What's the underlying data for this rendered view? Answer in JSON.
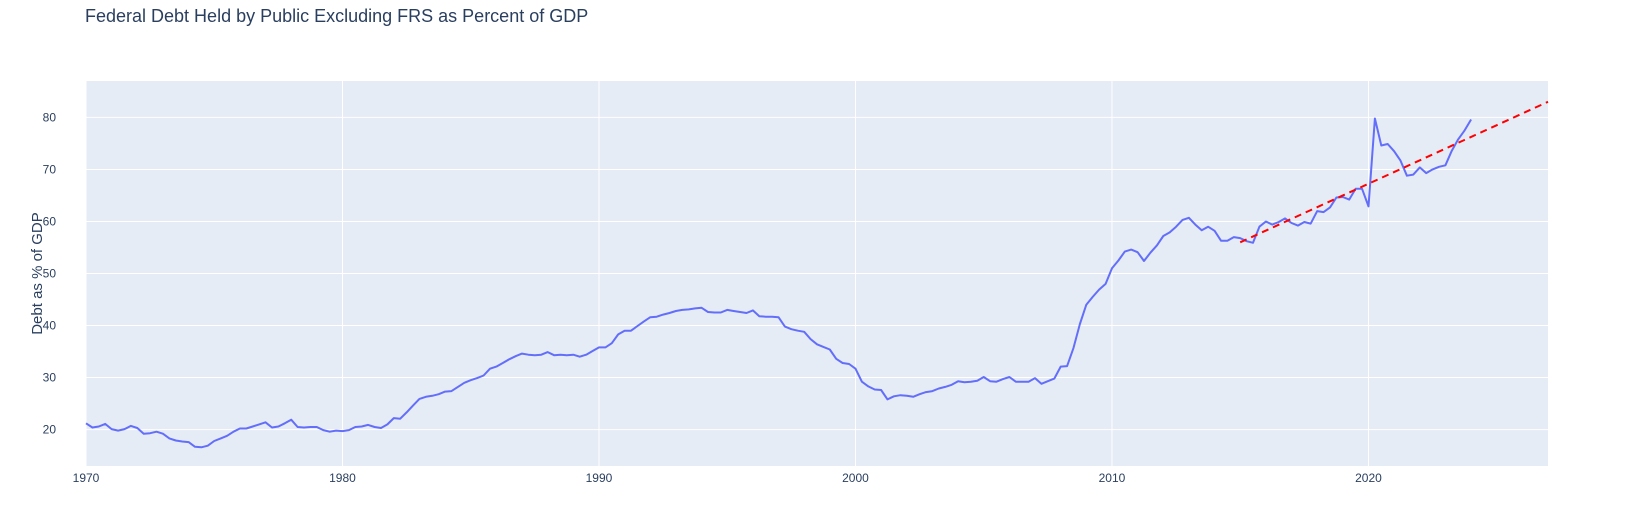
{
  "chart_data": {
    "type": "line",
    "title": "Federal Debt Held by Public Excluding FRS as Percent of GDP",
    "xlabel": "",
    "ylabel": "Debt as % of GDP",
    "xlim": [
      1970,
      2027
    ],
    "ylim": [
      13,
      87
    ],
    "x_ticks": [
      1970,
      1980,
      1990,
      2000,
      2010,
      2020
    ],
    "y_ticks": [
      20,
      30,
      40,
      50,
      60,
      70,
      80
    ],
    "grid": true,
    "legend": "none",
    "colors": {
      "series": "#636efa",
      "trend": "#ff0000",
      "plot_bg": "#e5ecf6",
      "grid": "#ffffff",
      "text": "#2a3f5f"
    },
    "series": [
      {
        "style": "solid",
        "x": [
          1970.0,
          1970.25,
          1970.5,
          1970.75,
          1971.0,
          1971.25,
          1971.5,
          1971.75,
          1972.0,
          1972.25,
          1972.5,
          1972.75,
          1973.0,
          1973.25,
          1973.5,
          1973.75,
          1974.0,
          1974.25,
          1974.5,
          1974.75,
          1975.0,
          1975.25,
          1975.5,
          1975.75,
          1976.0,
          1976.25,
          1976.5,
          1976.75,
          1977.0,
          1977.25,
          1977.5,
          1977.75,
          1978.0,
          1978.25,
          1978.5,
          1978.75,
          1979.0,
          1979.25,
          1979.5,
          1979.75,
          1980.0,
          1980.25,
          1980.5,
          1980.75,
          1981.0,
          1981.25,
          1981.5,
          1981.75,
          1982.0,
          1982.25,
          1982.5,
          1982.75,
          1983.0,
          1983.25,
          1983.5,
          1983.75,
          1984.0,
          1984.25,
          1984.5,
          1984.75,
          1985.0,
          1985.25,
          1985.5,
          1985.75,
          1986.0,
          1986.25,
          1986.5,
          1986.75,
          1987.0,
          1987.25,
          1987.5,
          1987.75,
          1988.0,
          1988.25,
          1988.5,
          1988.75,
          1989.0,
          1989.25,
          1989.5,
          1989.75,
          1990.0,
          1990.25,
          1990.5,
          1990.75,
          1991.0,
          1991.25,
          1991.5,
          1991.75,
          1992.0,
          1992.25,
          1992.5,
          1992.75,
          1993.0,
          1993.25,
          1993.5,
          1993.75,
          1994.0,
          1994.25,
          1994.5,
          1994.75,
          1995.0,
          1995.25,
          1995.5,
          1995.75,
          1996.0,
          1996.25,
          1996.5,
          1996.75,
          1997.0,
          1997.25,
          1997.5,
          1997.75,
          1998.0,
          1998.25,
          1998.5,
          1998.75,
          1999.0,
          1999.25,
          1999.5,
          1999.75,
          2000.0,
          2000.25,
          2000.5,
          2000.75,
          2001.0,
          2001.25,
          2001.5,
          2001.75,
          2002.0,
          2002.25,
          2002.5,
          2002.75,
          2003.0,
          2003.25,
          2003.5,
          2003.75,
          2004.0,
          2004.25,
          2004.5,
          2004.75,
          2005.0,
          2005.25,
          2005.5,
          2005.75,
          2006.0,
          2006.25,
          2006.5,
          2006.75,
          2007.0,
          2007.25,
          2007.5,
          2007.75,
          2008.0,
          2008.25,
          2008.5,
          2008.75,
          2009.0,
          2009.25,
          2009.5,
          2009.75,
          2010.0,
          2010.25,
          2010.5,
          2010.75,
          2011.0,
          2011.25,
          2011.5,
          2011.75,
          2012.0,
          2012.25,
          2012.5,
          2012.75,
          2013.0,
          2013.25,
          2013.5,
          2013.75,
          2014.0,
          2014.25,
          2014.5,
          2014.75,
          2015.0,
          2015.25,
          2015.5,
          2015.75,
          2016.0,
          2016.25,
          2016.5,
          2016.75,
          2017.0,
          2017.25,
          2017.5,
          2017.75,
          2018.0,
          2018.25,
          2018.5,
          2018.75,
          2019.0,
          2019.25,
          2019.5,
          2019.75,
          2020.0,
          2020.25,
          2020.5,
          2020.75,
          2021.0,
          2021.25,
          2021.5,
          2021.75,
          2022.0,
          2022.25,
          2022.5,
          2022.75,
          2023.0,
          2023.25,
          2023.5,
          2023.75,
          2024.0
        ],
        "y": [
          21.2,
          20.4,
          20.6,
          21.1,
          20.1,
          19.8,
          20.1,
          20.7,
          20.3,
          19.2,
          19.3,
          19.6,
          19.2,
          18.3,
          17.9,
          17.7,
          17.6,
          16.7,
          16.6,
          16.9,
          17.8,
          18.3,
          18.8,
          19.6,
          20.2,
          20.2,
          20.6,
          21.0,
          21.4,
          20.4,
          20.6,
          21.2,
          21.9,
          20.5,
          20.4,
          20.5,
          20.5,
          19.9,
          19.6,
          19.8,
          19.7,
          19.9,
          20.5,
          20.6,
          20.9,
          20.5,
          20.3,
          21.0,
          22.2,
          22.1,
          23.3,
          24.6,
          25.9,
          26.3,
          26.5,
          26.8,
          27.3,
          27.4,
          28.2,
          29.0,
          29.5,
          29.9,
          30.4,
          31.7,
          32.1,
          32.8,
          33.5,
          34.1,
          34.6,
          34.4,
          34.3,
          34.4,
          34.9,
          34.3,
          34.4,
          34.3,
          34.4,
          34.0,
          34.4,
          35.1,
          35.8,
          35.8,
          36.6,
          38.3,
          39.0,
          39.0,
          39.9,
          40.8,
          41.6,
          41.7,
          42.1,
          42.4,
          42.8,
          43.0,
          43.1,
          43.3,
          43.4,
          42.6,
          42.5,
          42.5,
          43.0,
          42.8,
          42.6,
          42.4,
          42.9,
          41.8,
          41.7,
          41.7,
          41.6,
          39.8,
          39.3,
          39.0,
          38.8,
          37.4,
          36.4,
          35.9,
          35.4,
          33.6,
          32.8,
          32.6,
          31.7,
          29.2,
          28.3,
          27.7,
          27.6,
          25.8,
          26.4,
          26.6,
          26.5,
          26.3,
          26.8,
          27.2,
          27.4,
          27.9,
          28.2,
          28.6,
          29.3,
          29.1,
          29.2,
          29.4,
          30.1,
          29.3,
          29.2,
          29.7,
          30.1,
          29.2,
          29.2,
          29.2,
          29.9,
          28.8,
          29.3,
          29.8,
          32.1,
          32.2,
          35.7,
          40.3,
          44.0,
          45.5,
          46.9,
          48.0,
          51.0,
          52.5,
          54.2,
          54.6,
          54.1,
          52.4,
          54.0,
          55.4,
          57.2,
          57.9,
          59.0,
          60.3,
          60.7,
          59.4,
          58.3,
          59.0,
          58.2,
          56.3,
          56.3,
          57.0,
          56.8,
          56.2,
          55.9,
          59.0,
          60.0,
          59.4,
          59.9,
          60.6,
          59.7,
          59.2,
          59.9,
          59.6,
          62.0,
          61.8,
          62.7,
          64.6,
          64.7,
          64.2,
          66.3,
          66.3,
          62.9,
          79.8,
          74.6,
          74.9,
          73.5,
          71.7,
          68.8,
          69.0,
          70.4,
          69.3,
          70.0,
          70.5,
          70.8,
          73.6,
          75.8,
          77.5,
          79.6
        ]
      },
      {
        "style": "dash",
        "x": [
          2015.0,
          2027.0
        ],
        "y": [
          56.0,
          83.0
        ]
      }
    ]
  }
}
